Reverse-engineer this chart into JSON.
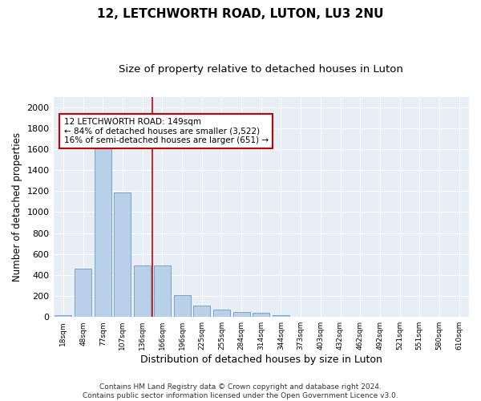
{
  "title": "12, LETCHWORTH ROAD, LUTON, LU3 2NU",
  "subtitle": "Size of property relative to detached houses in Luton",
  "xlabel": "Distribution of detached houses by size in Luton",
  "ylabel": "Number of detached properties",
  "categories": [
    "18sqm",
    "48sqm",
    "77sqm",
    "107sqm",
    "136sqm",
    "166sqm",
    "196sqm",
    "225sqm",
    "255sqm",
    "284sqm",
    "314sqm",
    "344sqm",
    "373sqm",
    "403sqm",
    "432sqm",
    "462sqm",
    "492sqm",
    "521sqm",
    "551sqm",
    "580sqm",
    "610sqm"
  ],
  "values": [
    20,
    460,
    1620,
    1190,
    490,
    490,
    210,
    110,
    70,
    50,
    40,
    20,
    0,
    0,
    0,
    0,
    0,
    0,
    0,
    0,
    0
  ],
  "bar_color": "#b8d0e8",
  "bar_edge_color": "#6699cc",
  "vline_x": 4.5,
  "vline_color": "#cc0000",
  "annotation_text": "12 LETCHWORTH ROAD: 149sqm\n← 84% of detached houses are smaller (3,522)\n16% of semi-detached houses are larger (651) →",
  "annotation_box_color": "#ffffff",
  "annotation_box_edge": "#cc0000",
  "ylim": [
    0,
    2100
  ],
  "yticks": [
    0,
    200,
    400,
    600,
    800,
    1000,
    1200,
    1400,
    1600,
    1800,
    2000
  ],
  "bg_color": "#e8eef5",
  "footer": "Contains HM Land Registry data © Crown copyright and database right 2024.\nContains public sector information licensed under the Open Government Licence v3.0.",
  "title_fontsize": 11,
  "subtitle_fontsize": 9.5,
  "xlabel_fontsize": 9,
  "ylabel_fontsize": 8.5,
  "annot_fontsize": 7.5
}
